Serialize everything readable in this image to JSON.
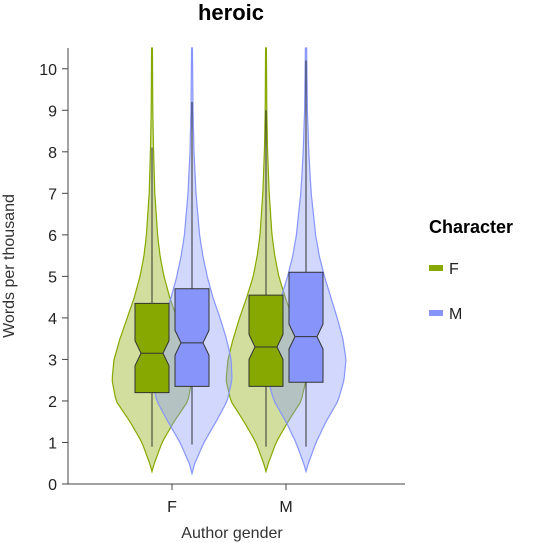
{
  "chart_data": {
    "type": "violin-box",
    "title": "heroic",
    "xlabel": "Author gender",
    "ylabel": "Words per thousand",
    "ylim": [
      0,
      10.5
    ],
    "yticks": [
      0,
      1,
      2,
      3,
      4,
      5,
      6,
      7,
      8,
      9,
      10
    ],
    "categories": [
      "F",
      "M"
    ],
    "legend": {
      "title": "Character",
      "position": "right"
    },
    "series": [
      {
        "name": "F",
        "color": "#86a800",
        "groups": [
          {
            "category": "F",
            "box": {
              "whisker_low": 0.9,
              "q1": 2.2,
              "median": 3.15,
              "q3": 4.35,
              "whisker_high": 8.1,
              "notch_low": 2.85,
              "notch_high": 3.45
            },
            "violin": {
              "y": [
                0.3,
                0.5,
                1.0,
                1.5,
                2.0,
                2.5,
                3.0,
                3.5,
                4.0,
                4.5,
                5.0,
                5.5,
                6.0,
                7.0,
                8.0,
                9.0,
                10.5
              ],
              "w": [
                0.0,
                0.06,
                0.25,
                0.55,
                0.9,
                1.0,
                0.95,
                0.8,
                0.62,
                0.44,
                0.3,
                0.2,
                0.14,
                0.07,
                0.04,
                0.02,
                0.01
              ]
            }
          },
          {
            "category": "M",
            "box": {
              "whisker_low": 0.9,
              "q1": 2.35,
              "median": 3.3,
              "q3": 4.55,
              "whisker_high": 9.0,
              "notch_low": 3.0,
              "notch_high": 3.6
            },
            "violin": {
              "y": [
                0.3,
                0.5,
                1.0,
                1.5,
                2.0,
                2.5,
                3.0,
                3.5,
                4.0,
                4.5,
                5.0,
                5.5,
                6.0,
                7.0,
                8.0,
                9.0,
                10.5
              ],
              "w": [
                0.0,
                0.06,
                0.25,
                0.55,
                0.88,
                1.0,
                0.95,
                0.82,
                0.66,
                0.48,
                0.32,
                0.22,
                0.15,
                0.08,
                0.04,
                0.02,
                0.01
              ]
            }
          }
        ]
      },
      {
        "name": "M",
        "color": "#8795fa",
        "groups": [
          {
            "category": "F",
            "box": {
              "whisker_low": 0.95,
              "q1": 2.35,
              "median": 3.4,
              "q3": 4.7,
              "whisker_high": 9.2,
              "notch_low": 3.1,
              "notch_high": 3.7
            },
            "violin": {
              "y": [
                0.25,
                0.5,
                1.0,
                1.5,
                2.0,
                2.5,
                3.0,
                3.5,
                4.0,
                4.5,
                5.0,
                5.5,
                6.0,
                7.0,
                8.0,
                9.0,
                10.5
              ],
              "w": [
                0.0,
                0.07,
                0.3,
                0.6,
                0.88,
                1.0,
                0.98,
                0.86,
                0.7,
                0.52,
                0.38,
                0.27,
                0.19,
                0.1,
                0.05,
                0.025,
                0.01
              ]
            }
          },
          {
            "category": "M",
            "box": {
              "whisker_low": 0.9,
              "q1": 2.45,
              "median": 3.55,
              "q3": 5.1,
              "whisker_high": 10.2,
              "notch_low": 3.25,
              "notch_high": 3.85
            },
            "violin": {
              "y": [
                0.3,
                0.5,
                1.0,
                1.5,
                2.0,
                2.5,
                3.0,
                3.5,
                4.0,
                4.5,
                5.0,
                5.5,
                6.0,
                7.0,
                8.0,
                9.0,
                10.5
              ],
              "w": [
                0.0,
                0.06,
                0.25,
                0.5,
                0.8,
                0.95,
                1.0,
                0.92,
                0.78,
                0.62,
                0.46,
                0.33,
                0.24,
                0.13,
                0.07,
                0.035,
                0.015
              ]
            }
          }
        ]
      }
    ]
  }
}
